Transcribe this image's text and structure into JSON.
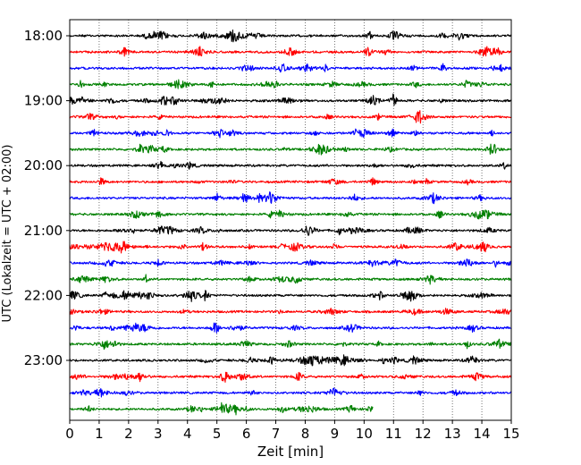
{
  "chart_data": {
    "type": "line",
    "xlabel": "Zeit  [min]",
    "ylabel": "UTC (Lokalzeit = UTC + 02:00)",
    "xlim": [
      0,
      15
    ],
    "x_ticks": [
      "0",
      "1",
      "2",
      "3",
      "4",
      "5",
      "6",
      "7",
      "8",
      "9",
      "10",
      "11",
      "12",
      "13",
      "14",
      "15"
    ],
    "y_ticks": [
      "18:00",
      "19:00",
      "20:00",
      "21:00",
      "22:00",
      "23:00"
    ],
    "grid": "vertical dotted",
    "trace_interval_minutes": 15,
    "trace_colors": [
      "#000000",
      "#ff0000",
      "#0000ff",
      "#008000"
    ],
    "traces": [
      {
        "start": "18:00",
        "color": "#000000",
        "end_min": 15
      },
      {
        "start": "18:15",
        "color": "#ff0000",
        "end_min": 15
      },
      {
        "start": "18:30",
        "color": "#0000ff",
        "end_min": 15
      },
      {
        "start": "18:45",
        "color": "#008000",
        "end_min": 15
      },
      {
        "start": "19:00",
        "color": "#000000",
        "end_min": 15
      },
      {
        "start": "19:15",
        "color": "#ff0000",
        "end_min": 15
      },
      {
        "start": "19:30",
        "color": "#0000ff",
        "end_min": 15
      },
      {
        "start": "19:45",
        "color": "#008000",
        "end_min": 15
      },
      {
        "start": "20:00",
        "color": "#000000",
        "end_min": 15
      },
      {
        "start": "20:15",
        "color": "#ff0000",
        "end_min": 15
      },
      {
        "start": "20:30",
        "color": "#0000ff",
        "end_min": 15
      },
      {
        "start": "20:45",
        "color": "#008000",
        "end_min": 15
      },
      {
        "start": "21:00",
        "color": "#000000",
        "end_min": 15
      },
      {
        "start": "21:15",
        "color": "#ff0000",
        "end_min": 15
      },
      {
        "start": "21:30",
        "color": "#0000ff",
        "end_min": 15
      },
      {
        "start": "21:45",
        "color": "#008000",
        "end_min": 15
      },
      {
        "start": "22:00",
        "color": "#000000",
        "end_min": 15
      },
      {
        "start": "22:15",
        "color": "#ff0000",
        "end_min": 15
      },
      {
        "start": "22:30",
        "color": "#0000ff",
        "end_min": 15
      },
      {
        "start": "22:45",
        "color": "#008000",
        "end_min": 15
      },
      {
        "start": "23:00",
        "color": "#000000",
        "end_min": 15
      },
      {
        "start": "23:15",
        "color": "#ff0000",
        "end_min": 15
      },
      {
        "start": "23:30",
        "color": "#0000ff",
        "end_min": 15
      },
      {
        "start": "23:45",
        "color": "#008000",
        "end_min": 10.3
      }
    ]
  }
}
